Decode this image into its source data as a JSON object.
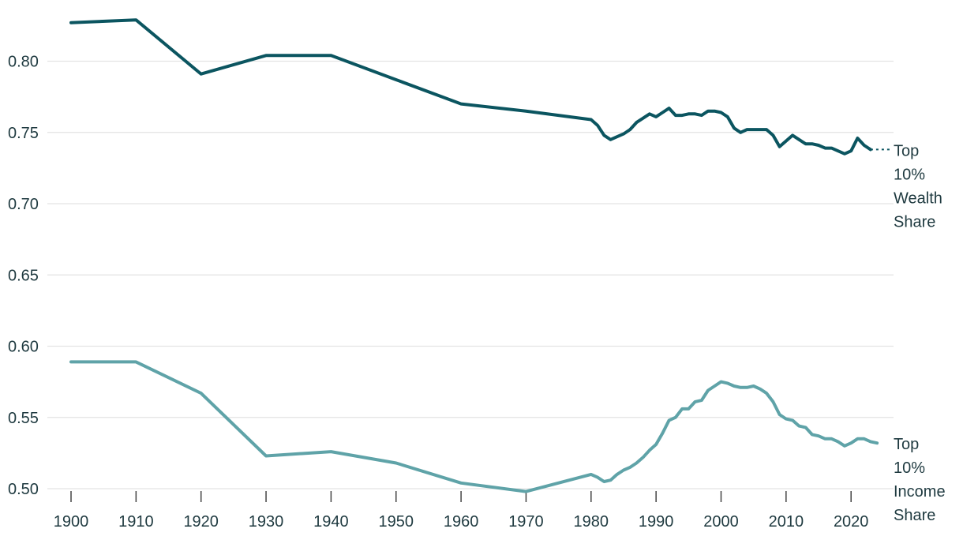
{
  "chart_data": {
    "type": "line",
    "title": "",
    "xlabel": "",
    "ylabel": "",
    "xlim": [
      1897,
      2028
    ],
    "ylim": [
      0.495,
      0.835
    ],
    "x_ticks": [
      "1900",
      "1910",
      "1920",
      "1930",
      "1940",
      "1950",
      "1960",
      "1970",
      "1980",
      "1990",
      "2000",
      "2010",
      "2020"
    ],
    "y_ticks": [
      "0.50",
      "0.55",
      "0.60",
      "0.65",
      "0.70",
      "0.75",
      "0.80"
    ],
    "grid": true,
    "legend": "direct labels at right end of each line",
    "series": [
      {
        "name": "Top 10% Wealth Share",
        "label_lines": [
          "Top",
          "10%",
          "Wealth",
          "Share"
        ],
        "color": "#0b5560",
        "x": [
          1900,
          1910,
          1920,
          1930,
          1940,
          1950,
          1960,
          1970,
          1980,
          1981,
          1982,
          1983,
          1984,
          1985,
          1986,
          1987,
          1988,
          1989,
          1990,
          1991,
          1992,
          1993,
          1994,
          1995,
          1996,
          1997,
          1998,
          1999,
          2000,
          2001,
          2002,
          2003,
          2004,
          2005,
          2006,
          2007,
          2008,
          2009,
          2010,
          2011,
          2012,
          2013,
          2014,
          2015,
          2016,
          2017,
          2018,
          2019,
          2020,
          2021,
          2022,
          2023
        ],
        "values": [
          0.827,
          0.829,
          0.791,
          0.804,
          0.804,
          0.787,
          0.77,
          0.765,
          0.759,
          0.755,
          0.748,
          0.745,
          0.747,
          0.749,
          0.752,
          0.757,
          0.76,
          0.763,
          0.761,
          0.764,
          0.767,
          0.762,
          0.762,
          0.763,
          0.763,
          0.762,
          0.765,
          0.765,
          0.764,
          0.761,
          0.753,
          0.75,
          0.752,
          0.752,
          0.752,
          0.752,
          0.748,
          0.74,
          0.744,
          0.748,
          0.745,
          0.742,
          0.742,
          0.741,
          0.739,
          0.739,
          0.737,
          0.735,
          0.737,
          0.746,
          0.741,
          0.738
        ],
        "projection": {
          "x": [
            2023,
            2026
          ],
          "values": [
            0.738,
            0.738
          ]
        }
      },
      {
        "name": "Top 10% Income Share",
        "label_lines": [
          "Top",
          "10%",
          "Income",
          "Share"
        ],
        "color": "#5fa3a8",
        "x": [
          1900,
          1910,
          1920,
          1930,
          1940,
          1950,
          1960,
          1970,
          1980,
          1981,
          1982,
          1983,
          1984,
          1985,
          1986,
          1987,
          1988,
          1989,
          1990,
          1991,
          1992,
          1993,
          1994,
          1995,
          1996,
          1997,
          1998,
          1999,
          2000,
          2001,
          2002,
          2003,
          2004,
          2005,
          2006,
          2007,
          2008,
          2009,
          2010,
          2011,
          2012,
          2013,
          2014,
          2015,
          2016,
          2017,
          2018,
          2019,
          2020,
          2021,
          2022,
          2023,
          2024
        ],
        "values": [
          0.589,
          0.589,
          0.567,
          0.523,
          0.526,
          0.518,
          0.504,
          0.498,
          0.51,
          0.508,
          0.505,
          0.506,
          0.51,
          0.513,
          0.515,
          0.518,
          0.522,
          0.527,
          0.531,
          0.539,
          0.548,
          0.55,
          0.556,
          0.556,
          0.561,
          0.562,
          0.569,
          0.572,
          0.575,
          0.574,
          0.572,
          0.571,
          0.571,
          0.572,
          0.57,
          0.567,
          0.561,
          0.552,
          0.549,
          0.548,
          0.544,
          0.543,
          0.538,
          0.537,
          0.535,
          0.535,
          0.533,
          0.53,
          0.532,
          0.535,
          0.535,
          0.533,
          0.532
        ]
      }
    ]
  }
}
